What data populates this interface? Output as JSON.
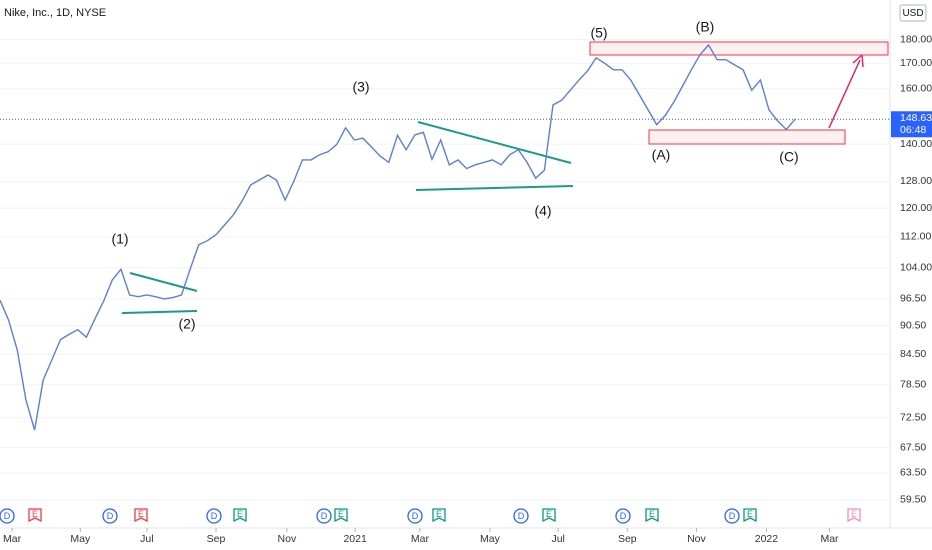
{
  "header": {
    "title": "Nike, Inc., 1D, NYSE",
    "currency": "USD"
  },
  "chart_data": {
    "type": "line",
    "log_scale": true,
    "color": "#5b7fd6",
    "values": [
      96.2,
      91.7,
      85.3,
      75.7,
      70.4,
      79.4,
      83.3,
      87.5,
      88.6,
      89.6,
      88,
      92,
      96,
      101,
      103.6,
      97.4,
      97,
      97.4,
      97,
      96.5,
      96.8,
      97.4,
      103.6,
      109.9,
      111,
      112.6,
      115.3,
      118.1,
      122,
      126.9,
      128.4,
      130,
      128.4,
      122.4,
      128,
      134.8,
      134.8,
      136.5,
      137.5,
      140,
      145.6,
      141.4,
      142,
      139,
      136,
      134,
      143,
      138.1,
      143.1,
      144,
      135,
      141.4,
      133.2,
      134.8,
      132,
      133.2,
      134,
      134.8,
      133.2,
      136.5,
      138.1,
      134,
      129,
      131.5,
      153.8,
      155.6,
      159.4,
      163.3,
      167,
      172.3,
      170,
      167.4,
      167.4,
      163.3,
      157.6,
      152,
      146.7,
      150,
      155,
      161,
      167.4,
      173.5,
      177.7,
      171.5,
      171.5,
      169.4,
      167.4,
      159.4,
      163.3,
      152,
      148,
      145,
      148.63
    ],
    "xlim": [
      0,
      103
    ],
    "xticks": [
      {
        "value": 1.4,
        "label": "Mar"
      },
      {
        "value": 9.3,
        "label": "May"
      },
      {
        "value": 17,
        "label": "Jul"
      },
      {
        "value": 25,
        "label": "Sep"
      },
      {
        "value": 33.2,
        "label": "Nov"
      },
      {
        "value": 41.1,
        "label": "2021"
      },
      {
        "value": 48.6,
        "label": "Mar"
      },
      {
        "value": 56.7,
        "label": "May"
      },
      {
        "value": 64.6,
        "label": "Jul"
      },
      {
        "value": 72.6,
        "label": "Sep"
      },
      {
        "value": 80.6,
        "label": "Nov"
      },
      {
        "value": 88.7,
        "label": "2022"
      },
      {
        "value": 96,
        "label": "Mar"
      }
    ],
    "ylim": [
      56.7,
      198
    ],
    "yticks": [
      {
        "value": 180,
        "label": "180.00"
      },
      {
        "value": 170,
        "label": "170.00"
      },
      {
        "value": 160,
        "label": "160.00"
      },
      {
        "value": 140,
        "label": "140.00"
      },
      {
        "value": 128,
        "label": "128.00"
      },
      {
        "value": 120,
        "label": "120.00"
      },
      {
        "value": 112,
        "label": "112.00"
      },
      {
        "value": 104,
        "label": "104.00"
      },
      {
        "value": 96.5,
        "label": "96.50"
      },
      {
        "value": 90.5,
        "label": "90.50"
      },
      {
        "value": 84.5,
        "label": "84.50"
      },
      {
        "value": 78.5,
        "label": "78.50"
      },
      {
        "value": 72.5,
        "label": "72.50"
      },
      {
        "value": 67.5,
        "label": "67.50"
      },
      {
        "value": 63.5,
        "label": "63.50"
      },
      {
        "value": 59.5,
        "label": "59.50"
      }
    ],
    "last_price": 148.63,
    "countdown": "06:48",
    "annotations": [
      "(1)",
      "(2)",
      "(3)",
      "(4)",
      "(5)",
      "(A)",
      "(B)",
      "(C)"
    ],
    "events": [
      "D",
      "E",
      "D",
      "E",
      "D",
      "E",
      "D",
      "E",
      "D",
      "E",
      "D",
      "E",
      "D",
      "E",
      "D",
      "E",
      "E"
    ]
  }
}
